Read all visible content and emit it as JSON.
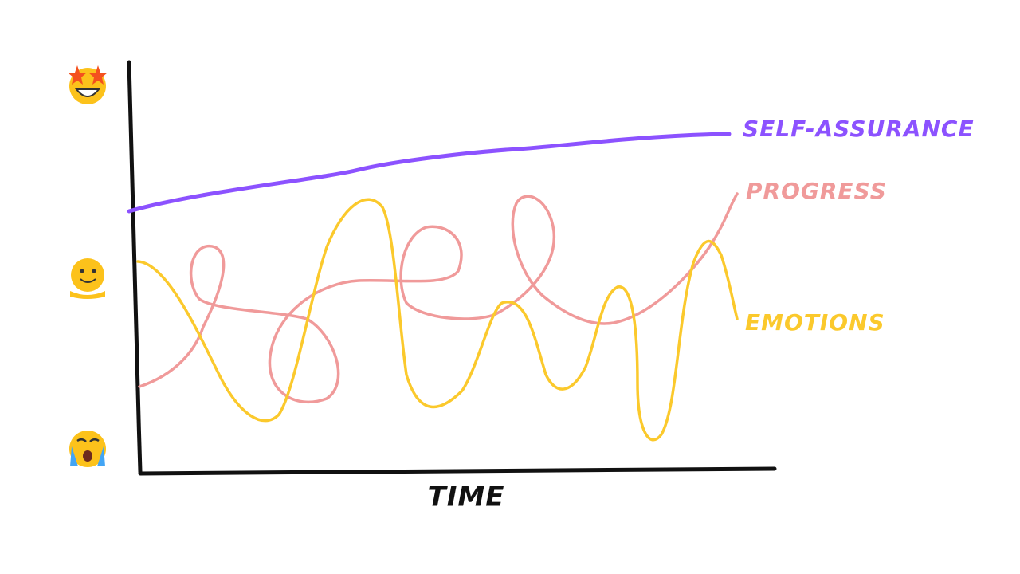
{
  "axis": {
    "x_label": "TIME"
  },
  "lines": [
    {
      "label": "SELF-ASSURANCE"
    },
    {
      "label": "PROGRESS"
    },
    {
      "label": "EMOTIONS"
    }
  ]
}
